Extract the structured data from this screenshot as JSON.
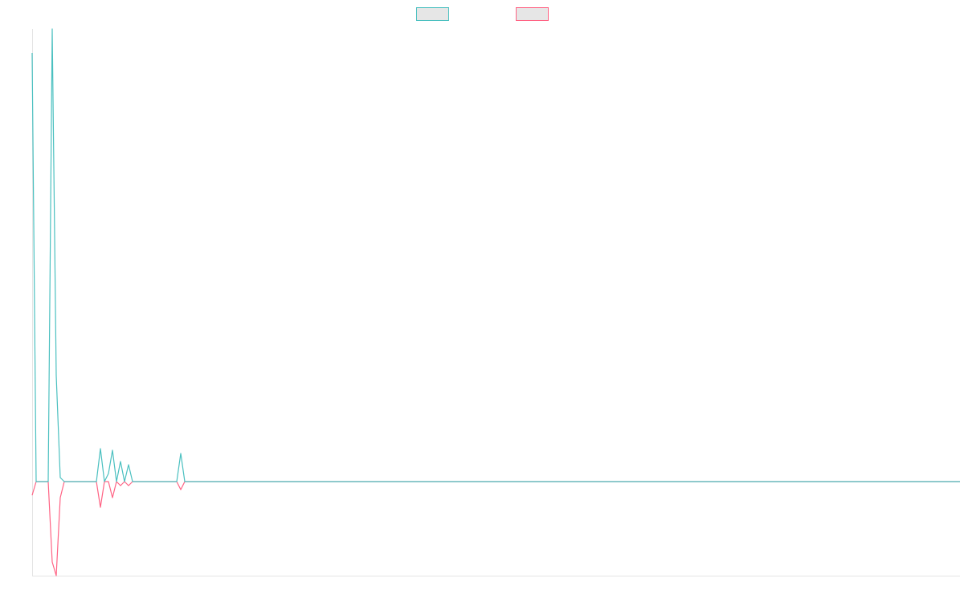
{
  "chart_data": {
    "type": "line",
    "categories": [
      null,
      null,
      null,
      null,
      null,
      null,
      null,
      null,
      null,
      null,
      null,
      null,
      null,
      null,
      null,
      null,
      null,
      null,
      null,
      null,
      null,
      null,
      null,
      null,
      null,
      null,
      null,
      null,
      null,
      null,
      null,
      null,
      null,
      null,
      null,
      null,
      null,
      null,
      null,
      null,
      null,
      null,
      null,
      null,
      null,
      null,
      null,
      null,
      null,
      null,
      null,
      null,
      null,
      null,
      null,
      null,
      null,
      null,
      null,
      null,
      null,
      null,
      null,
      null,
      null,
      null,
      null,
      null,
      null,
      null,
      null,
      null,
      null,
      null,
      null,
      null,
      null,
      null,
      null,
      null,
      null,
      null,
      null,
      null,
      null,
      null,
      null,
      null,
      null,
      null,
      null,
      null,
      null,
      null,
      null,
      null,
      null,
      null,
      null,
      null,
      null,
      null,
      null,
      null,
      null,
      null,
      null,
      null,
      null,
      null,
      null,
      null,
      null,
      null,
      null,
      null,
      null,
      null,
      null,
      null,
      null,
      null,
      null,
      null,
      null,
      null,
      null,
      null,
      null,
      null,
      null,
      null,
      null,
      null,
      null,
      null,
      null,
      null,
      null,
      null,
      null,
      null,
      null,
      null,
      null,
      null,
      null,
      null,
      null,
      null,
      null,
      null,
      null,
      null,
      null,
      null,
      null,
      null,
      null,
      null,
      null,
      null,
      null,
      null,
      null,
      null,
      null,
      null,
      null,
      null,
      null,
      null,
      null,
      null,
      null,
      null,
      null,
      null,
      null,
      null,
      null,
      null,
      null,
      null,
      null,
      null,
      null,
      null,
      null,
      null,
      null,
      null,
      null,
      null,
      null,
      null,
      null,
      null,
      null,
      null,
      null,
      null,
      null,
      null,
      null,
      null,
      null,
      null,
      null,
      null,
      null,
      null,
      null,
      null,
      null,
      null,
      null,
      null,
      null,
      null,
      null,
      null,
      null,
      null,
      null,
      null,
      null,
      null,
      null,
      null,
      null,
      null
    ],
    "series": [
      {
        "color": "#4bc0c0",
        "values": [
          533,
          0,
          0,
          0,
          0,
          563,
          132,
          5,
          0,
          0,
          0,
          0,
          0,
          0,
          0,
          0,
          0,
          41,
          0,
          10,
          39,
          0,
          25,
          0,
          21,
          0,
          0,
          0,
          0,
          0,
          0,
          0,
          0,
          0,
          0,
          0,
          0,
          35,
          0,
          0,
          0,
          0,
          0,
          0,
          0,
          0,
          0,
          0,
          0,
          0,
          0,
          0,
          0,
          0,
          0,
          0,
          0,
          0,
          0,
          0,
          0,
          0,
          0,
          0,
          0,
          0,
          0,
          0,
          0,
          0,
          0,
          0,
          0,
          0,
          0,
          0,
          0,
          0,
          0,
          0,
          0,
          0,
          0,
          0,
          0,
          0,
          0,
          0,
          0,
          0,
          0,
          0,
          0,
          0,
          0,
          0,
          0,
          0,
          0,
          0,
          0,
          0,
          0,
          0,
          0,
          0,
          0,
          0,
          0,
          0,
          0,
          0,
          0,
          0,
          0,
          0,
          0,
          0,
          0,
          0,
          0,
          0,
          0,
          0,
          0,
          0,
          0,
          0,
          0,
          0,
          0,
          0,
          0,
          0,
          0,
          0,
          0,
          0,
          0,
          0,
          0,
          0,
          0,
          0,
          0,
          0,
          0,
          0,
          0,
          0,
          0,
          0,
          0,
          0,
          0,
          0,
          0,
          0,
          0,
          0,
          0,
          0,
          0,
          0,
          0,
          0,
          0,
          0,
          0,
          0,
          0,
          0,
          0,
          0,
          0,
          0,
          0,
          0,
          0,
          0,
          0,
          0,
          0,
          0,
          0,
          0,
          0,
          0,
          0,
          0,
          0,
          0,
          0,
          0,
          0,
          0,
          0,
          0,
          0,
          0,
          0,
          0,
          0,
          0,
          0,
          0,
          0,
          0,
          0,
          0,
          0,
          0,
          0,
          0,
          0,
          0,
          0,
          0,
          0,
          0,
          0,
          0,
          0,
          0,
          0,
          0,
          0,
          0,
          0,
          0,
          0,
          0
        ]
      },
      {
        "color": "#ff6384",
        "values": [
          -17,
          0,
          0,
          0,
          0,
          -100,
          -117,
          -20,
          0,
          0,
          0,
          0,
          0,
          0,
          0,
          0,
          0,
          -32,
          0,
          0,
          -20,
          0,
          -5,
          0,
          -5,
          0,
          0,
          0,
          0,
          0,
          0,
          0,
          0,
          0,
          0,
          0,
          0,
          -10,
          0,
          0,
          0,
          0,
          0,
          0,
          0,
          0,
          0,
          0,
          0,
          0,
          0,
          0,
          0,
          0,
          0,
          0,
          0,
          0,
          0,
          0,
          0,
          0,
          0,
          0,
          0,
          0,
          0,
          0,
          0,
          0,
          0,
          0,
          0,
          0,
          0,
          0,
          0,
          0,
          0,
          0,
          0,
          0,
          0,
          0,
          0,
          0,
          0,
          0,
          0,
          0,
          0,
          0,
          0,
          0,
          0,
          0,
          0,
          0,
          0,
          0,
          0,
          0,
          0,
          0,
          0,
          0,
          0,
          0,
          0,
          0,
          0,
          0,
          0,
          0,
          0,
          0,
          0,
          0,
          0,
          0,
          0,
          0,
          0,
          0,
          0,
          0,
          0,
          0,
          0,
          0,
          0,
          0,
          0,
          0,
          0,
          0,
          0,
          0,
          0,
          0,
          0,
          0,
          0,
          0,
          0,
          0,
          0,
          0,
          0,
          0,
          0,
          0,
          0,
          0,
          0,
          0,
          0,
          0,
          0,
          0,
          0,
          0,
          0,
          0,
          0,
          0,
          0,
          0,
          0,
          0,
          0,
          0,
          0,
          0,
          0,
          0,
          0,
          0,
          0,
          0,
          0,
          0,
          0,
          0,
          0,
          0,
          0,
          0,
          0,
          0,
          0,
          0,
          0,
          0,
          0,
          0,
          0,
          0,
          0,
          0,
          0,
          0,
          0,
          0,
          0,
          0,
          0,
          0,
          0,
          0,
          0,
          0,
          0,
          0,
          0,
          0,
          0,
          0,
          0,
          0,
          0,
          0,
          0,
          0,
          0,
          0,
          0,
          0,
          0,
          0,
          0,
          0
        ]
      }
    ],
    "ylim": [
      -117,
      563
    ]
  }
}
